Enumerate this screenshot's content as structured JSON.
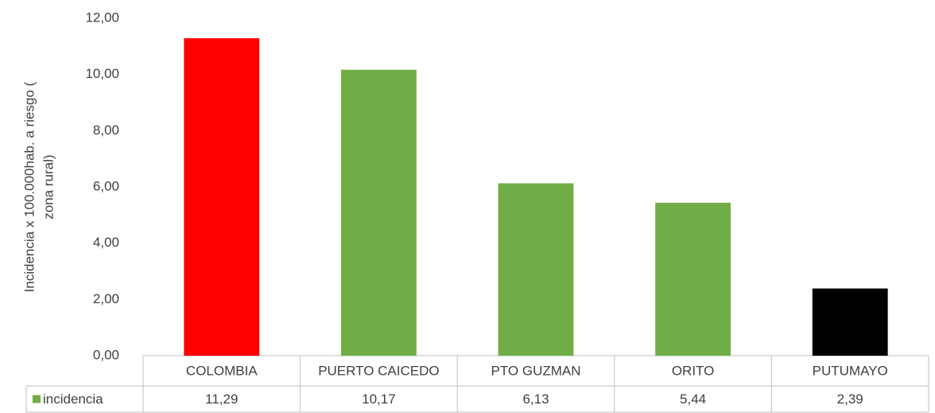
{
  "chart_data": {
    "type": "bar",
    "y_axis_label": [
      "Incidencia x 100.000hab. a riesgo (",
      "zona  rural)"
    ],
    "categories": [
      "COLOMBIA",
      "PUERTO CAICEDO",
      "PTO GUZMAN",
      "ORITO",
      "PUTUMAYO"
    ],
    "series": [
      {
        "name": "incidencia",
        "color": "#70ad47",
        "bar_colors": [
          "#ff0000",
          "#70ad47",
          "#70ad47",
          "#70ad47",
          "#000000"
        ],
        "values": [
          11.29,
          10.17,
          6.13,
          5.44,
          2.39
        ],
        "value_labels": [
          "11,29",
          "10,17",
          "6,13",
          "5,44",
          "2,39"
        ]
      }
    ],
    "ylim": [
      0,
      12
    ],
    "yticks": [
      {
        "value": 0,
        "label": "0,00"
      },
      {
        "value": 2,
        "label": "2,00"
      },
      {
        "value": 4,
        "label": "4,00"
      },
      {
        "value": 6,
        "label": "6,00"
      },
      {
        "value": 8,
        "label": "8,00"
      },
      {
        "value": 10,
        "label": "10,00"
      },
      {
        "value": 12,
        "label": "12,00"
      }
    ],
    "grid": false
  }
}
